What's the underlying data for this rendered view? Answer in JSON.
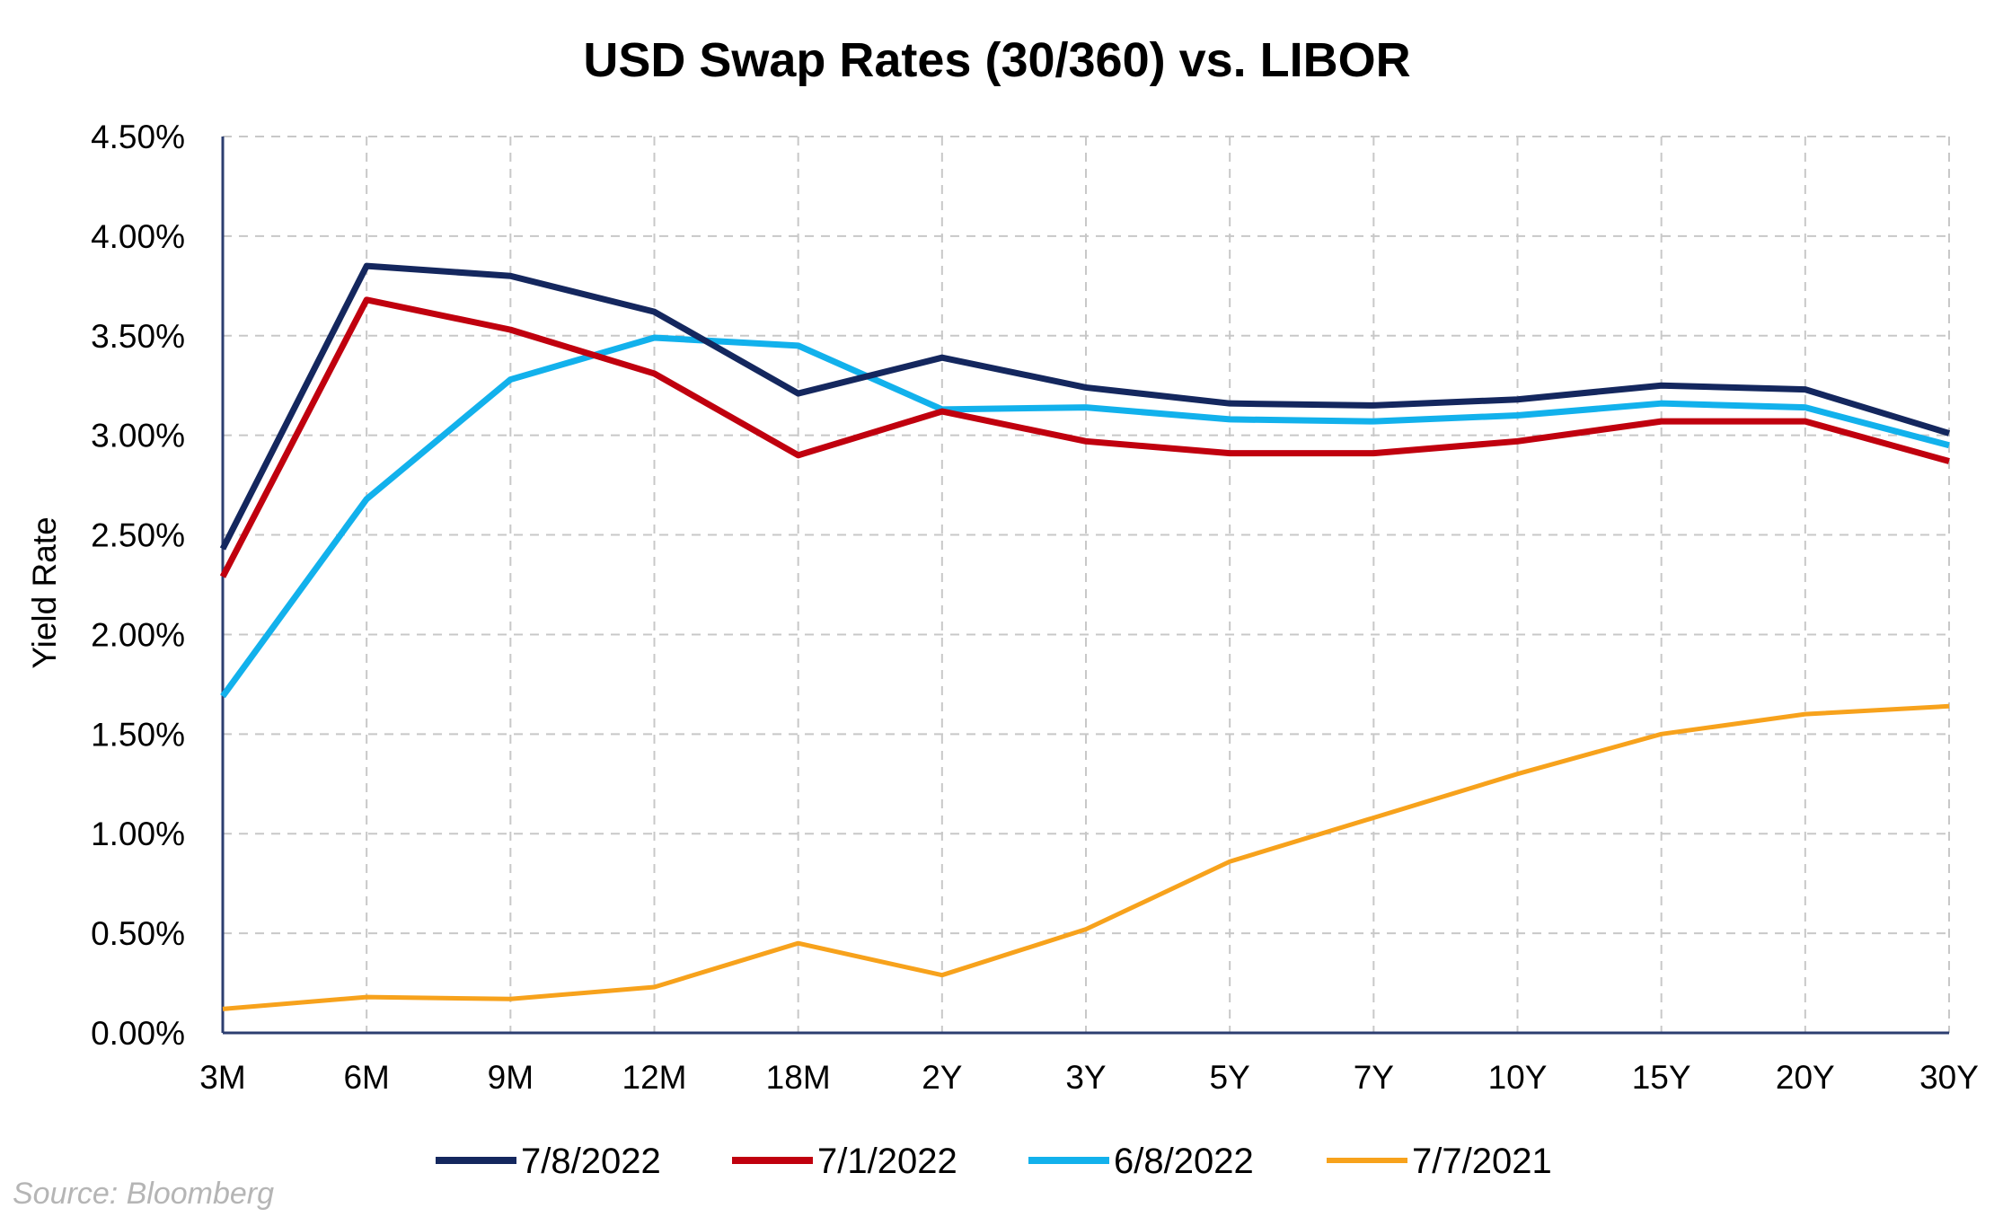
{
  "chart_data": {
    "type": "line",
    "title": "USD Swap Rates (30/360) vs. LIBOR",
    "xlabel": "",
    "ylabel": "Yield Rate",
    "ylim": [
      0,
      4.5
    ],
    "y_ticks": [
      "0.00%",
      "0.50%",
      "1.00%",
      "1.50%",
      "2.00%",
      "2.50%",
      "3.00%",
      "3.50%",
      "4.00%",
      "4.50%"
    ],
    "y_tick_values": [
      0,
      0.5,
      1.0,
      1.5,
      2.0,
      2.5,
      3.0,
      3.5,
      4.0,
      4.5
    ],
    "categories": [
      "3M",
      "6M",
      "9M",
      "12M",
      "18M",
      "2Y",
      "3Y",
      "5Y",
      "7Y",
      "10Y",
      "15Y",
      "20Y",
      "30Y"
    ],
    "grid": true,
    "legend_position": "bottom",
    "series": [
      {
        "name": "7/8/2022",
        "color": "#14275e",
        "values": [
          2.43,
          3.85,
          3.8,
          3.62,
          3.21,
          3.39,
          3.24,
          3.16,
          3.15,
          3.18,
          3.25,
          3.23,
          3.01
        ]
      },
      {
        "name": "7/1/2022",
        "color": "#c0000e",
        "values": [
          2.29,
          3.68,
          3.53,
          3.31,
          2.9,
          3.12,
          2.97,
          2.91,
          2.91,
          2.97,
          3.07,
          3.07,
          2.87
        ]
      },
      {
        "name": "6/8/2022",
        "color": "#12b1ec",
        "values": [
          1.69,
          2.68,
          3.28,
          3.49,
          3.45,
          3.13,
          3.14,
          3.08,
          3.07,
          3.1,
          3.16,
          3.14,
          2.95
        ]
      },
      {
        "name": "7/7/2021",
        "color": "#f7a21c",
        "values": [
          0.12,
          0.18,
          0.17,
          0.23,
          0.45,
          0.29,
          0.52,
          0.86,
          1.08,
          1.3,
          1.5,
          1.6,
          1.64
        ]
      }
    ]
  },
  "source": "Source: Bloomberg"
}
